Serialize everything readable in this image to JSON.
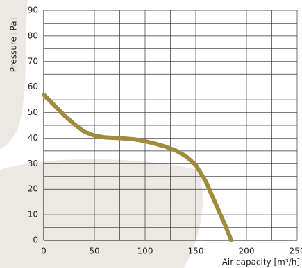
{
  "chart_data": {
    "type": "line",
    "x_label": "Air capacity [m³/h]",
    "y_label": "Pressure [Pa]",
    "x": [
      0,
      10,
      20,
      30,
      40,
      50,
      60,
      75,
      90,
      100,
      110,
      120,
      130,
      140,
      150,
      160,
      170,
      180,
      185
    ],
    "series": [
      {
        "color": "#a08a3e",
        "values": [
          57,
          53,
          49,
          45.5,
          42.5,
          41,
          40.3,
          40,
          39.5,
          38.8,
          37.8,
          36.7,
          35.2,
          33,
          29.5,
          23,
          14,
          5,
          0
        ]
      }
    ],
    "xlim": [
      0,
      250
    ],
    "ylim": [
      0,
      90
    ],
    "xticks": [
      0,
      50,
      100,
      150,
      200,
      250
    ],
    "yticks": [
      0,
      10,
      20,
      30,
      40,
      50,
      60,
      70,
      80,
      90
    ],
    "minor_xticks": [
      25,
      75,
      125,
      175,
      225
    ],
    "minor_yticks": [
      5,
      15,
      25,
      35,
      45,
      55,
      65,
      75,
      85
    ],
    "grid": true
  }
}
